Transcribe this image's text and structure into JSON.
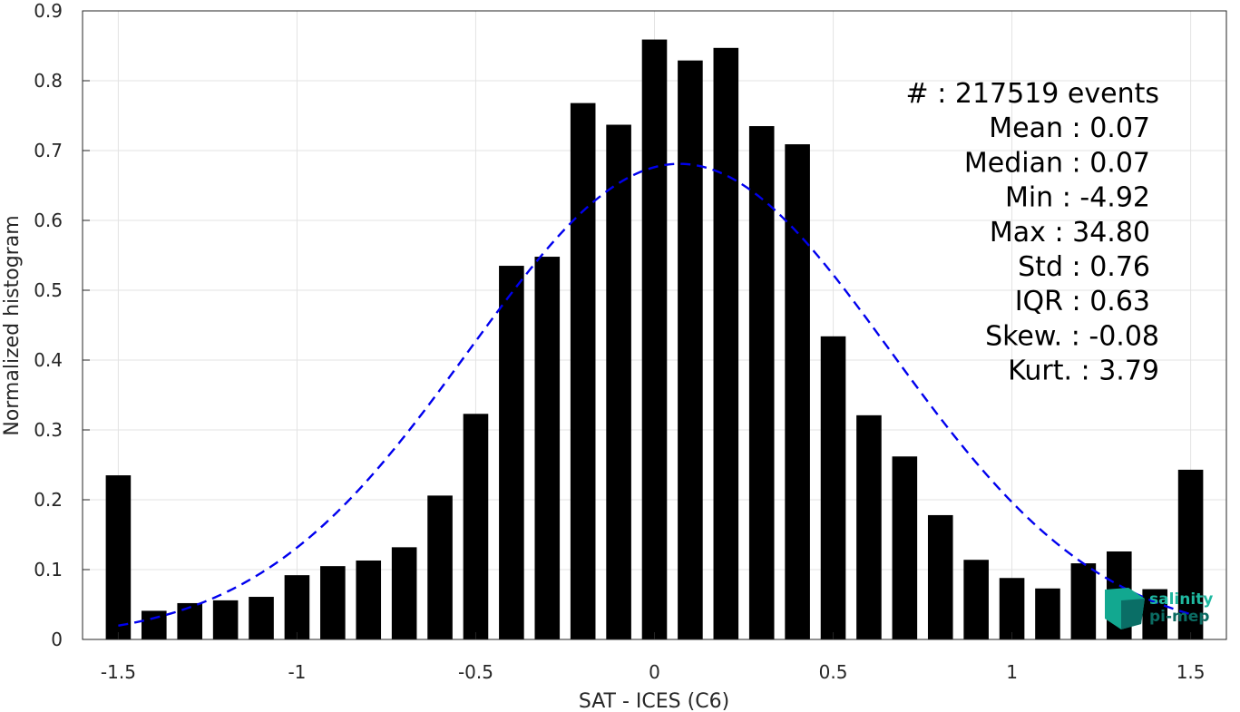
{
  "chart_data": {
    "type": "bar",
    "xlabel": "SAT - ICES (C6)",
    "ylabel": "Normalized histogram",
    "xlim": [
      -1.6,
      1.6
    ],
    "ylim": [
      0,
      0.9
    ],
    "grid": true,
    "x_ticks": [
      {
        "value": -1.5,
        "label": "-1.5"
      },
      {
        "value": -1,
        "label": "-1"
      },
      {
        "value": -0.5,
        "label": "-0.5"
      },
      {
        "value": 0,
        "label": "0"
      },
      {
        "value": 0.5,
        "label": "0.5"
      },
      {
        "value": 1,
        "label": "1"
      },
      {
        "value": 1.5,
        "label": "1.5"
      }
    ],
    "y_ticks": [
      {
        "value": 0,
        "label": "0"
      },
      {
        "value": 0.1,
        "label": "0.1"
      },
      {
        "value": 0.2,
        "label": "0.2"
      },
      {
        "value": 0.3,
        "label": "0.3"
      },
      {
        "value": 0.4,
        "label": "0.4"
      },
      {
        "value": 0.5,
        "label": "0.5"
      },
      {
        "value": 0.6,
        "label": "0.6"
      },
      {
        "value": 0.7,
        "label": "0.7"
      },
      {
        "value": 0.8,
        "label": "0.8"
      },
      {
        "value": 0.9,
        "label": "0.9"
      }
    ],
    "bar_width": 0.07,
    "bar_color": "#000000",
    "bins": [
      {
        "x": -1.5,
        "y": 0.235
      },
      {
        "x": -1.4,
        "y": 0.041
      },
      {
        "x": -1.3,
        "y": 0.052
      },
      {
        "x": -1.2,
        "y": 0.056
      },
      {
        "x": -1.1,
        "y": 0.061
      },
      {
        "x": -1.0,
        "y": 0.092
      },
      {
        "x": -0.9,
        "y": 0.105
      },
      {
        "x": -0.8,
        "y": 0.113
      },
      {
        "x": -0.7,
        "y": 0.132
      },
      {
        "x": -0.6,
        "y": 0.206
      },
      {
        "x": -0.5,
        "y": 0.323
      },
      {
        "x": -0.4,
        "y": 0.535
      },
      {
        "x": -0.3,
        "y": 0.548
      },
      {
        "x": -0.2,
        "y": 0.768
      },
      {
        "x": -0.1,
        "y": 0.737
      },
      {
        "x": 0.0,
        "y": 0.859
      },
      {
        "x": 0.1,
        "y": 0.829
      },
      {
        "x": 0.2,
        "y": 0.847
      },
      {
        "x": 0.3,
        "y": 0.735
      },
      {
        "x": 0.4,
        "y": 0.709
      },
      {
        "x": 0.5,
        "y": 0.434
      },
      {
        "x": 0.6,
        "y": 0.321
      },
      {
        "x": 0.7,
        "y": 0.262
      },
      {
        "x": 0.8,
        "y": 0.178
      },
      {
        "x": 0.9,
        "y": 0.114
      },
      {
        "x": 1.0,
        "y": 0.088
      },
      {
        "x": 1.1,
        "y": 0.073
      },
      {
        "x": 1.2,
        "y": 0.109
      },
      {
        "x": 1.3,
        "y": 0.126
      },
      {
        "x": 1.4,
        "y": 0.072
      },
      {
        "x": 1.5,
        "y": 0.243
      }
    ],
    "fit_curve": {
      "style": "dashed",
      "color": "#0000ee",
      "mean": 0.07,
      "std": 0.59,
      "peak": 0.681,
      "x_range": [
        -1.5,
        1.5
      ]
    },
    "stats": [
      {
        "label": "#",
        "value": ": 217519 events"
      },
      {
        "label": "Mean",
        "value": ": 0.07"
      },
      {
        "label": "Median",
        "value": ": 0.07"
      },
      {
        "label": "Min",
        "value": ": -4.92"
      },
      {
        "label": "Max",
        "value": ": 34.80"
      },
      {
        "label": "Std",
        "value": ": 0.76"
      },
      {
        "label": "IQR",
        "value": ": 0.63"
      },
      {
        "label": "Skew.",
        "value": ": -0.08"
      },
      {
        "label": "Kurt.",
        "value": ": 3.79"
      }
    ]
  },
  "logo": {
    "line1": "salinity",
    "line2": "pi-mep",
    "color1": "#1fb8a0",
    "color2": "#0b6b62"
  }
}
